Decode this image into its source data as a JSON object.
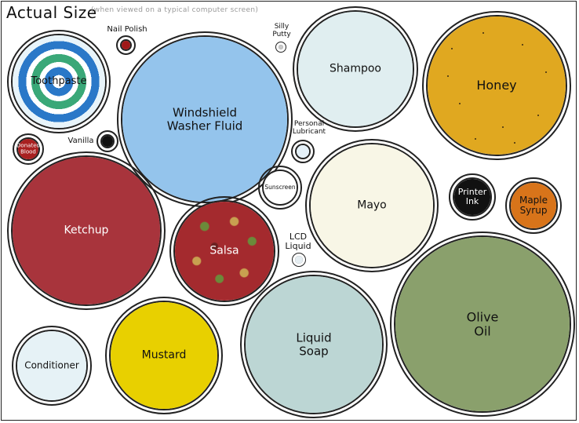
{
  "title": "Actual Size",
  "subtitle": "(when viewed on a typical computer screen)",
  "items": {
    "toothpaste": "Toothpaste",
    "nail_polish": "Nail Polish",
    "windshield": "Windshield\nWasher Fluid",
    "silly_putty": "Silly\nPutty",
    "shampoo": "Shampoo",
    "honey": "Honey",
    "donated_blood": "Donated\nBlood",
    "vanilla": "Vanilla",
    "personal_lubricant": "Personal\nLubricant",
    "sunscreen": "Sunscreen",
    "mayo": "Mayo",
    "printer_ink": "Printer\nInk",
    "maple_syrup": "Maple\nSyrup",
    "ketchup": "Ketchup",
    "salsa": "Salsa",
    "lcd_liquid": "LCD\nLiquid",
    "olive_oil": "Olive\nOil",
    "liquid_soap": "Liquid\nSoap",
    "mustard": "Mustard",
    "conditioner": "Conditioner"
  },
  "colors": {
    "toothpaste_blue": "#2a78c8",
    "toothpaste_green": "#3aa878",
    "nail_polish": "#a01818",
    "windshield": "#94c4ec",
    "silly_putty": "#c8c8c8",
    "shampoo": "#e0eef0",
    "honey": "#e0a820",
    "donated_blood": "#a82020",
    "vanilla": "#111111",
    "personal_lubricant": "#e4f0f8",
    "sunscreen": "#ffffff",
    "mayo": "#f8f6e6",
    "printer_ink": "#111111",
    "maple_syrup": "#d8741a",
    "ketchup": "#a8343c",
    "salsa": "#a42a2e",
    "lcd_liquid": "#e6eef2",
    "olive_oil": "#8aa06c",
    "liquid_soap": "#bcd6d4",
    "mustard": "#e8d000",
    "conditioner": "#e6f2f6"
  }
}
